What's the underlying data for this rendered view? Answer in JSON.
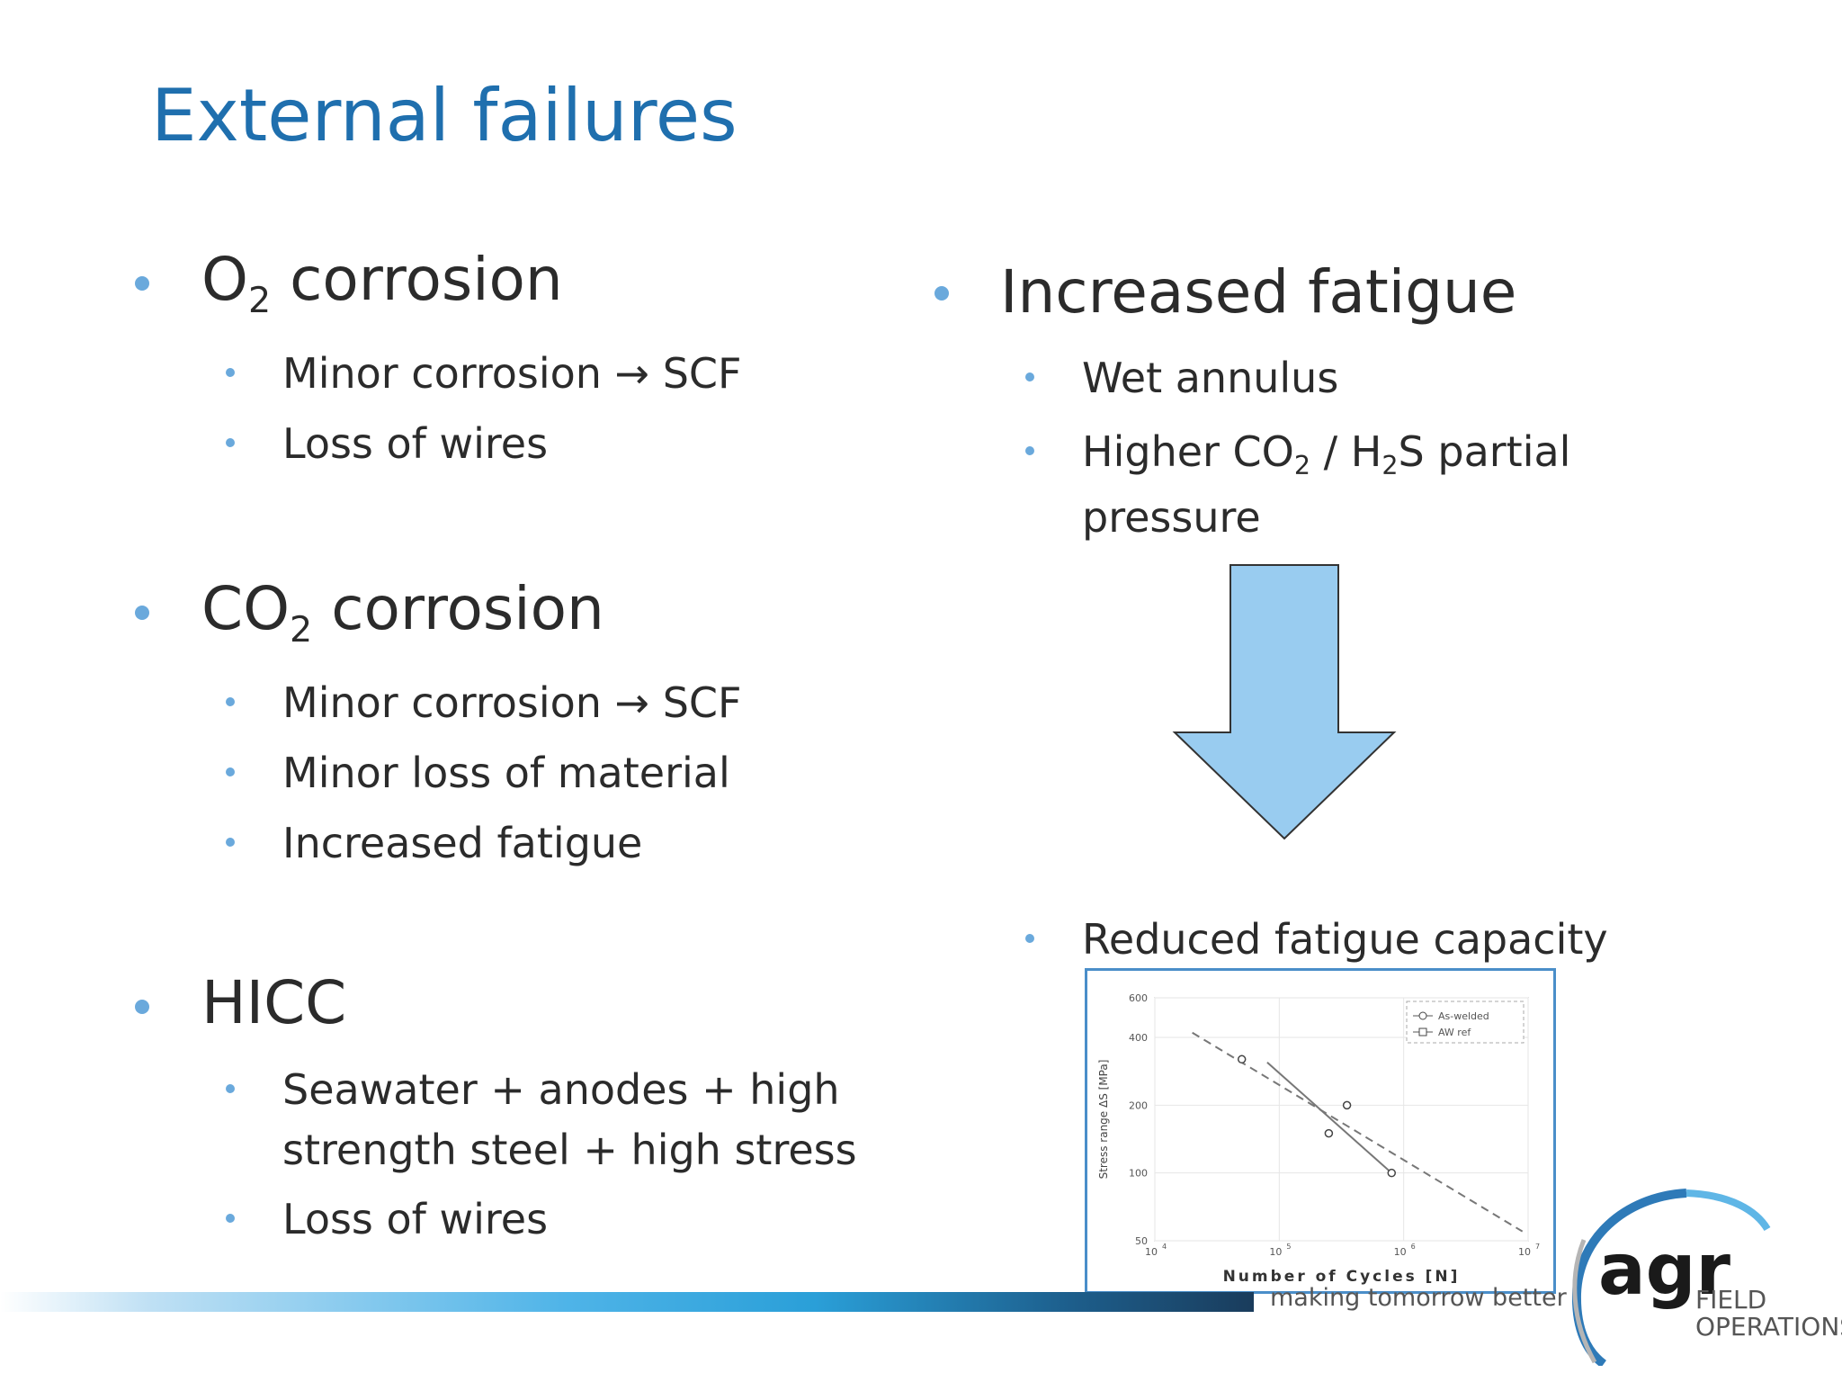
{
  "slide": {
    "title": "External failures",
    "left": {
      "o2": {
        "main": "O",
        "sub": "2",
        "rest": " corrosion",
        "items": [
          "Minor corrosion → SCF",
          "Loss of wires"
        ]
      },
      "co2": {
        "main": "CO",
        "sub": "2",
        "rest": " corrosion",
        "items": [
          "Minor corrosion → SCF",
          "Minor loss of material",
          "Increased fatigue"
        ]
      },
      "hicc": {
        "heading": "HICC",
        "item1_line1": "Seawater + anodes + high",
        "item1_line2": "strength steel + high stress",
        "item2": "Loss of wires"
      }
    },
    "right": {
      "heading": "Increased fatigue",
      "item1": "Wet annulus",
      "item2": {
        "p1": "Higher CO",
        "s1": "2",
        "p2": " / H",
        "s2": "2",
        "p3": "S partial",
        "line2": "pressure"
      },
      "result": "Reduced fatigue capacity"
    },
    "arrow_color": "#99ccf0",
    "accent_color": "#1f6fae"
  },
  "chart_data": {
    "type": "scatter",
    "xlabel": "Number of Cycles [N]",
    "ylabel": "Stress range ΔS [MPa]",
    "x_scale": "log",
    "y_scale": "log",
    "xlim": [
      10000,
      10000000
    ],
    "ylim": [
      50,
      600
    ],
    "x_ticks": [
      {
        "value": 10000,
        "base": "10",
        "exp": "4"
      },
      {
        "value": 100000,
        "base": "10",
        "exp": "5"
      },
      {
        "value": 1000000,
        "base": "10",
        "exp": "6"
      },
      {
        "value": 10000000,
        "base": "10",
        "exp": "7"
      }
    ],
    "y_ticks": [
      {
        "value": 50,
        "label": "50"
      },
      {
        "value": 100,
        "label": "100"
      },
      {
        "value": 200,
        "label": "200"
      },
      {
        "value": 400,
        "label": "400"
      },
      {
        "value": 600,
        "label": "600"
      }
    ],
    "legend_position": "top-right",
    "series": [
      {
        "name": "As-welded",
        "marker": "circle",
        "points": [
          [
            50000,
            320
          ],
          [
            250000,
            150
          ],
          [
            350000,
            200
          ],
          [
            800000,
            100
          ]
        ]
      },
      {
        "name": "AW ref",
        "marker": "square",
        "points": []
      }
    ],
    "lines": [
      {
        "style": "dashed",
        "points": [
          [
            20000,
            420
          ],
          [
            9000000,
            55
          ]
        ]
      },
      {
        "style": "solid",
        "points": [
          [
            80000,
            310
          ],
          [
            800000,
            100
          ]
        ]
      }
    ]
  },
  "footer": {
    "tagline": "making tomorrow better",
    "logo_word": "agr",
    "logo_line1": "FIELD",
    "logo_line2": "OPERATIONS"
  }
}
